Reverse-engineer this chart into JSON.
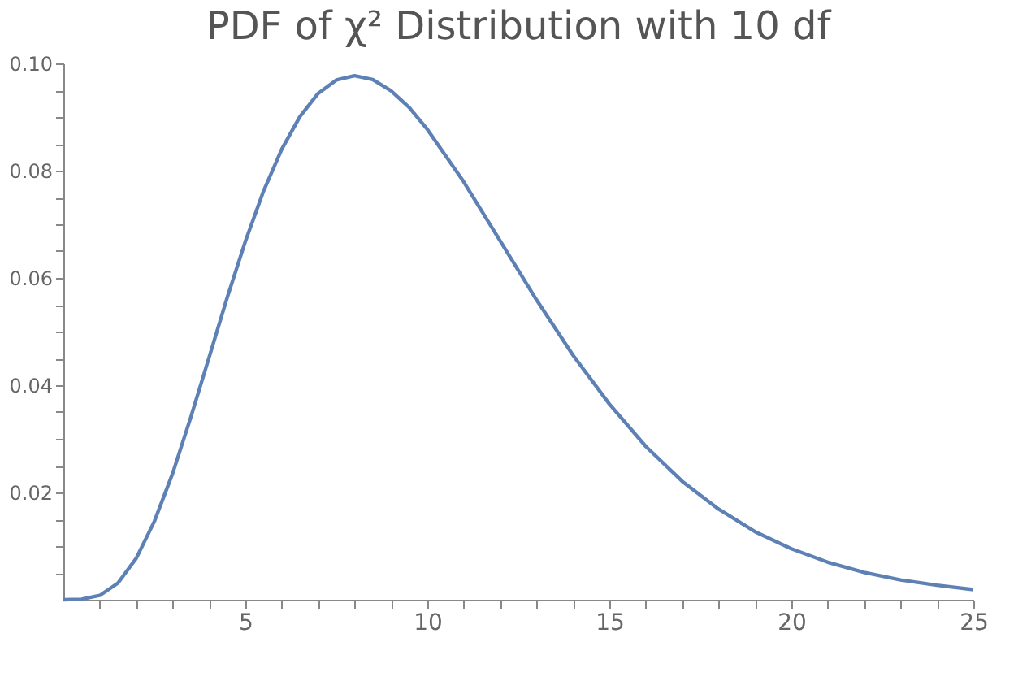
{
  "chart_data": {
    "type": "line",
    "title": "PDF of χ² Distribution with 10 df",
    "x": [
      0,
      0.5,
      1,
      1.5,
      2,
      2.5,
      3,
      3.5,
      4,
      4.5,
      5,
      5.5,
      6,
      6.5,
      7,
      7.5,
      8,
      8.5,
      9,
      9.5,
      10,
      11,
      12,
      13,
      14,
      15,
      16,
      17,
      18,
      19,
      20,
      21,
      22,
      23,
      24,
      25
    ],
    "series": [
      {
        "color": "#5e81b5",
        "values": [
          0,
          0.0001,
          0.0008,
          0.0031,
          0.0077,
          0.0146,
          0.0235,
          0.034,
          0.0451,
          0.0563,
          0.0668,
          0.0762,
          0.084,
          0.0901,
          0.0944,
          0.0969,
          0.0977,
          0.097,
          0.0949,
          0.0918,
          0.0877,
          0.0779,
          0.0669,
          0.0559,
          0.0456,
          0.0365,
          0.0286,
          0.0221,
          0.0169,
          0.0127,
          0.0095,
          0.007,
          0.0051,
          0.0037,
          0.0027,
          0.0019
        ]
      }
    ],
    "xlim": [
      0,
      25
    ],
    "ylim": [
      0,
      0.1
    ],
    "xticks": [
      {
        "value": 1,
        "label": null
      },
      {
        "value": 2,
        "label": null
      },
      {
        "value": 3,
        "label": null
      },
      {
        "value": 4,
        "label": null
      },
      5,
      {
        "value": 6,
        "label": null
      },
      {
        "value": 7,
        "label": null
      },
      {
        "value": 8,
        "label": null
      },
      {
        "value": 9,
        "label": null
      },
      10,
      {
        "value": 11,
        "label": null
      },
      {
        "value": 12,
        "label": null
      },
      {
        "value": 13,
        "label": null
      },
      {
        "value": 14,
        "label": null
      },
      15,
      {
        "value": 16,
        "label": null
      },
      {
        "value": 17,
        "label": null
      },
      {
        "value": 18,
        "label": null
      },
      {
        "value": 19,
        "label": null
      },
      20,
      {
        "value": 21,
        "label": null
      },
      {
        "value": 22,
        "label": null
      },
      {
        "value": 23,
        "label": null
      },
      {
        "value": 24,
        "label": null
      },
      25
    ],
    "yticks": [
      {
        "value": 0.005,
        "label": null
      },
      {
        "value": 0.01,
        "label": null
      },
      {
        "value": 0.015,
        "label": null
      },
      {
        "value": 0.02,
        "label": "0.02"
      },
      {
        "value": 0.025,
        "label": null
      },
      {
        "value": 0.03,
        "label": null
      },
      {
        "value": 0.035,
        "label": null
      },
      {
        "value": 0.04,
        "label": "0.04"
      },
      {
        "value": 0.045,
        "label": null
      },
      {
        "value": 0.05,
        "label": null
      },
      {
        "value": 0.055,
        "label": null
      },
      {
        "value": 0.06,
        "label": "0.06"
      },
      {
        "value": 0.065,
        "label": null
      },
      {
        "value": 0.07,
        "label": null
      },
      {
        "value": 0.075,
        "label": null
      },
      {
        "value": 0.08,
        "label": "0.08"
      },
      {
        "value": 0.085,
        "label": null
      },
      {
        "value": 0.09,
        "label": null
      },
      {
        "value": 0.095,
        "label": null
      },
      {
        "value": 0.1,
        "label": "0.10"
      }
    ],
    "grid": false,
    "marker": "none",
    "line_style": "solid"
  }
}
